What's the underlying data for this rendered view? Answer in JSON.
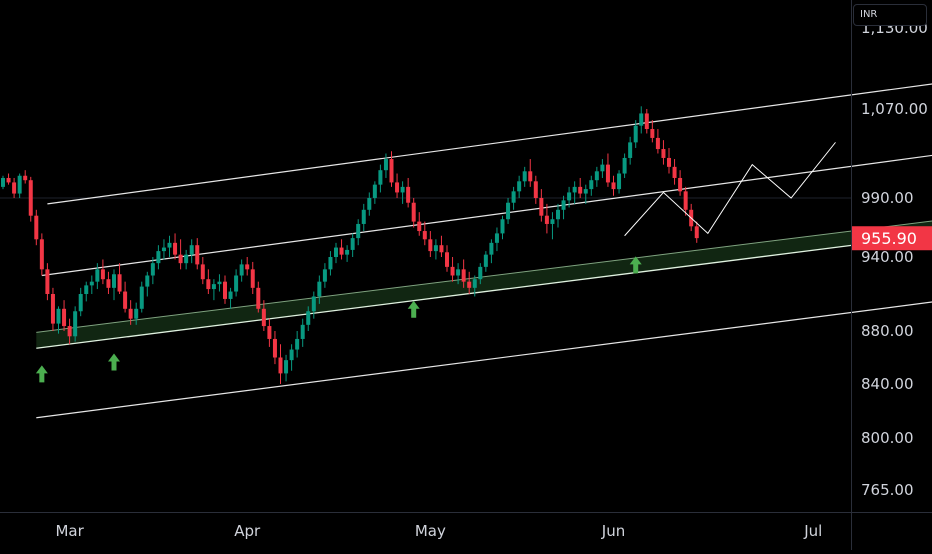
{
  "chart_data": {
    "type": "candlestick",
    "currency": "INR",
    "y_axis": {
      "ticks": [
        {
          "value": 765,
          "label": "765.00"
        },
        {
          "value": 800,
          "label": "800.00"
        },
        {
          "value": 840,
          "label": "840.00"
        },
        {
          "value": 880,
          "label": "880.00"
        },
        {
          "value": 940,
          "label": "940.00"
        },
        {
          "value": 990,
          "label": "990.00"
        },
        {
          "value": 1070,
          "label": "1,070.00"
        },
        {
          "value": 1130,
          "label": "1,130.00"
        }
      ]
    },
    "x_axis": {
      "ticks": [
        {
          "label": "Mar",
          "bar_index": 12
        },
        {
          "label": "Apr",
          "bar_index": 44
        },
        {
          "label": "May",
          "bar_index": 77
        },
        {
          "label": "Jun",
          "bar_index": 110
        },
        {
          "label": "Jul",
          "bar_index": 146
        }
      ]
    },
    "last_price": {
      "value": 955.9,
      "label": "955.90",
      "color": "#f23645"
    },
    "colors": {
      "up": "#089981",
      "down": "#f23645",
      "channel": "#ffffff",
      "support_zone": "#4caf50",
      "arrow": "#4caf50"
    },
    "candles": [
      [
        1000,
        1010,
        998,
        1008
      ],
      [
        1008,
        1012,
        1002,
        1004
      ],
      [
        1004,
        1008,
        990,
        994
      ],
      [
        994,
        1012,
        990,
        1010
      ],
      [
        1010,
        1015,
        1003,
        1006
      ],
      [
        1006,
        1009,
        970,
        975
      ],
      [
        975,
        980,
        950,
        955
      ],
      [
        955,
        960,
        925,
        930
      ],
      [
        930,
        935,
        905,
        910
      ],
      [
        910,
        915,
        880,
        886
      ],
      [
        886,
        900,
        878,
        898
      ],
      [
        898,
        905,
        880,
        884
      ],
      [
        884,
        890,
        870,
        876
      ],
      [
        876,
        900,
        872,
        896
      ],
      [
        896,
        915,
        892,
        910
      ],
      [
        910,
        920,
        904,
        917
      ],
      [
        917,
        925,
        910,
        920
      ],
      [
        920,
        935,
        914,
        930
      ],
      [
        930,
        938,
        918,
        922
      ],
      [
        922,
        928,
        910,
        915
      ],
      [
        915,
        930,
        905,
        926
      ],
      [
        926,
        935,
        910,
        912
      ],
      [
        912,
        920,
        895,
        898
      ],
      [
        898,
        905,
        885,
        890
      ],
      [
        890,
        903,
        885,
        898
      ],
      [
        898,
        920,
        895,
        916
      ],
      [
        916,
        928,
        908,
        925
      ],
      [
        925,
        940,
        918,
        935
      ],
      [
        935,
        950,
        930,
        945
      ],
      [
        945,
        955,
        938,
        948
      ],
      [
        948,
        958,
        940,
        952
      ],
      [
        952,
        960,
        938,
        942
      ],
      [
        942,
        955,
        930,
        935
      ],
      [
        935,
        946,
        930,
        942
      ],
      [
        942,
        955,
        935,
        950
      ],
      [
        950,
        956,
        930,
        934
      ],
      [
        934,
        940,
        918,
        922
      ],
      [
        922,
        930,
        910,
        914
      ],
      [
        914,
        922,
        905,
        918
      ],
      [
        918,
        926,
        912,
        920
      ],
      [
        920,
        925,
        902,
        906
      ],
      [
        906,
        915,
        898,
        912
      ],
      [
        912,
        930,
        908,
        925
      ],
      [
        925,
        938,
        920,
        934
      ],
      [
        934,
        940,
        925,
        930
      ],
      [
        930,
        936,
        910,
        915
      ],
      [
        915,
        920,
        895,
        898
      ],
      [
        898,
        905,
        880,
        884
      ],
      [
        884,
        890,
        868,
        874
      ],
      [
        874,
        880,
        855,
        860
      ],
      [
        860,
        870,
        840,
        848
      ],
      [
        848,
        862,
        842,
        858
      ],
      [
        858,
        870,
        850,
        866
      ],
      [
        866,
        880,
        860,
        874
      ],
      [
        874,
        890,
        868,
        885
      ],
      [
        885,
        900,
        880,
        896
      ],
      [
        896,
        912,
        890,
        908
      ],
      [
        908,
        925,
        902,
        920
      ],
      [
        920,
        935,
        915,
        930
      ],
      [
        930,
        945,
        925,
        940
      ],
      [
        940,
        952,
        935,
        948
      ],
      [
        948,
        955,
        938,
        942
      ],
      [
        942,
        950,
        936,
        946
      ],
      [
        946,
        960,
        940,
        956
      ],
      [
        956,
        972,
        950,
        968
      ],
      [
        968,
        985,
        962,
        980
      ],
      [
        980,
        995,
        975,
        990
      ],
      [
        990,
        1005,
        985,
        1002
      ],
      [
        1002,
        1020,
        995,
        1015
      ],
      [
        1015,
        1030,
        1008,
        1025
      ],
      [
        1025,
        1032,
        1000,
        1004
      ],
      [
        1004,
        1012,
        990,
        995
      ],
      [
        995,
        1005,
        985,
        1000
      ],
      [
        1000,
        1008,
        982,
        986
      ],
      [
        986,
        990,
        965,
        970
      ],
      [
        970,
        978,
        958,
        962
      ],
      [
        962,
        970,
        950,
        955
      ],
      [
        955,
        962,
        940,
        945
      ],
      [
        945,
        955,
        938,
        950
      ],
      [
        950,
        958,
        940,
        944
      ],
      [
        944,
        950,
        928,
        932
      ],
      [
        932,
        940,
        920,
        925
      ],
      [
        925,
        935,
        918,
        930
      ],
      [
        930,
        938,
        915,
        920
      ],
      [
        920,
        928,
        910,
        915
      ],
      [
        915,
        925,
        908,
        922
      ],
      [
        922,
        935,
        918,
        932
      ],
      [
        932,
        945,
        928,
        942
      ],
      [
        942,
        955,
        935,
        952
      ],
      [
        952,
        965,
        945,
        960
      ],
      [
        960,
        975,
        955,
        972
      ],
      [
        972,
        990,
        968,
        986
      ],
      [
        986,
        1000,
        980,
        996
      ],
      [
        996,
        1010,
        990,
        1005
      ],
      [
        1005,
        1018,
        1000,
        1014
      ],
      [
        1014,
        1025,
        1000,
        1005
      ],
      [
        1005,
        1010,
        985,
        990
      ],
      [
        990,
        998,
        970,
        975
      ],
      [
        975,
        985,
        960,
        968
      ],
      [
        968,
        978,
        955,
        972
      ],
      [
        972,
        985,
        965,
        980
      ],
      [
        980,
        992,
        972,
        988
      ],
      [
        988,
        1000,
        982,
        995
      ],
      [
        995,
        1005,
        985,
        1000
      ],
      [
        1000,
        1008,
        990,
        994
      ],
      [
        994,
        1002,
        985,
        998
      ],
      [
        998,
        1010,
        992,
        1006
      ],
      [
        1006,
        1018,
        1000,
        1014
      ],
      [
        1014,
        1025,
        1008,
        1020
      ],
      [
        1020,
        1030,
        1000,
        1004
      ],
      [
        1004,
        1010,
        992,
        998
      ],
      [
        998,
        1015,
        994,
        1012
      ],
      [
        1012,
        1030,
        1008,
        1026
      ],
      [
        1026,
        1045,
        1020,
        1040
      ],
      [
        1040,
        1060,
        1035,
        1055
      ],
      [
        1055,
        1072,
        1048,
        1066
      ],
      [
        1066,
        1070,
        1048,
        1052
      ],
      [
        1052,
        1060,
        1040,
        1044
      ],
      [
        1044,
        1052,
        1030,
        1034
      ],
      [
        1034,
        1042,
        1020,
        1026
      ],
      [
        1026,
        1035,
        1012,
        1018
      ],
      [
        1018,
        1025,
        1002,
        1008
      ],
      [
        1008,
        1015,
        992,
        996
      ],
      [
        996,
        1000,
        975,
        980
      ],
      [
        980,
        985,
        962,
        966
      ],
      [
        966,
        970,
        952,
        956
      ]
    ],
    "channel_lines": [
      {
        "from": {
          "i": 8,
          "v": 985
        },
        "to": {
          "i": 170,
          "v": 1090
        }
      },
      {
        "from": {
          "i": 7,
          "v": 925
        },
        "to": {
          "i": 170,
          "v": 1030
        }
      },
      {
        "from": {
          "i": 6,
          "v": 815
        },
        "to": {
          "i": 170,
          "v": 905
        }
      }
    ],
    "support_zone": {
      "from": {
        "i": 6,
        "v_top": 879,
        "v_bottom": 867
      },
      "to": {
        "i": 170,
        "v_top": 972,
        "v_bottom": 960
      }
    },
    "support_arrows": [
      {
        "i": 7,
        "v": 848
      },
      {
        "i": 20,
        "v": 857
      },
      {
        "i": 74,
        "v": 898
      },
      {
        "i": 114,
        "v": 934
      }
    ],
    "projection_path": [
      {
        "i": 112,
        "v": 958
      },
      {
        "i": 119,
        "v": 995
      },
      {
        "i": 127,
        "v": 960
      },
      {
        "i": 135,
        "v": 1020
      },
      {
        "i": 142,
        "v": 990
      },
      {
        "i": 150,
        "v": 1040
      }
    ]
  }
}
